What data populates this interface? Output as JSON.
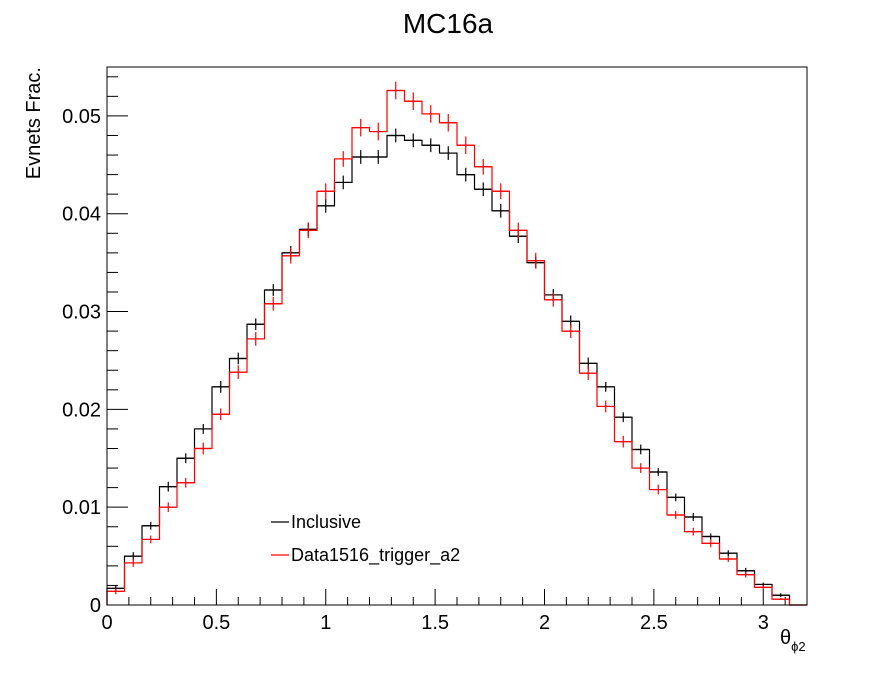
{
  "chart_data": {
    "type": "histogram",
    "title": "MC16a",
    "xlabel": "θ",
    "xlabel_sub": "ϕ2",
    "ylabel": "Evnets Frac.",
    "xlim": [
      0,
      3.2
    ],
    "ylim": [
      0,
      0.055
    ],
    "x_ticks": [
      0,
      0.5,
      1,
      1.5,
      2,
      2.5,
      3
    ],
    "x_tick_labels": [
      "0",
      "0.5",
      "1",
      "1.5",
      "2",
      "2.5",
      "3"
    ],
    "y_ticks": [
      0,
      0.01,
      0.02,
      0.03,
      0.04,
      0.05
    ],
    "y_tick_labels": [
      "0",
      "0.01",
      "0.02",
      "0.03",
      "0.04",
      "0.05"
    ],
    "bin_width": 0.08,
    "x_start": 0,
    "series": [
      {
        "name": "Inclusive",
        "color": "#000000",
        "values": [
          0.0017,
          0.005,
          0.0081,
          0.0121,
          0.015,
          0.018,
          0.0223,
          0.0252,
          0.0287,
          0.0322,
          0.036,
          0.0384,
          0.0408,
          0.0432,
          0.0458,
          0.0458,
          0.048,
          0.0475,
          0.047,
          0.0462,
          0.044,
          0.0425,
          0.0403,
          0.0377,
          0.035,
          0.0317,
          0.029,
          0.0247,
          0.0223,
          0.0192,
          0.0159,
          0.0136,
          0.011,
          0.009,
          0.007,
          0.0053,
          0.0035,
          0.0021,
          0.001,
          0.0
        ],
        "errors": [
          0.0003,
          0.0004,
          0.0004,
          0.0005,
          0.0005,
          0.0005,
          0.0006,
          0.0006,
          0.0006,
          0.0006,
          0.0007,
          0.0007,
          0.0007,
          0.0007,
          0.0007,
          0.0007,
          0.0007,
          0.0007,
          0.0007,
          0.0007,
          0.0007,
          0.0007,
          0.0007,
          0.0007,
          0.0006,
          0.0006,
          0.0006,
          0.0006,
          0.0005,
          0.0005,
          0.0005,
          0.0004,
          0.0004,
          0.0004,
          0.0003,
          0.0003,
          0.0003,
          0.0002,
          0.0002,
          0.0
        ]
      },
      {
        "name": "Data1516_trigger_a2",
        "color": "#ff0000",
        "values": [
          0.0014,
          0.0043,
          0.0067,
          0.01,
          0.0125,
          0.016,
          0.0195,
          0.0238,
          0.0272,
          0.0308,
          0.0357,
          0.0383,
          0.0423,
          0.0456,
          0.0488,
          0.0484,
          0.0526,
          0.0515,
          0.0502,
          0.0493,
          0.047,
          0.0448,
          0.0423,
          0.0383,
          0.0352,
          0.0312,
          0.028,
          0.0237,
          0.0203,
          0.0167,
          0.014,
          0.0118,
          0.0092,
          0.0075,
          0.0063,
          0.0047,
          0.0031,
          0.0018,
          0.0006,
          0.0
        ],
        "errors": [
          0.0003,
          0.0004,
          0.0004,
          0.0005,
          0.0005,
          0.0006,
          0.0006,
          0.0007,
          0.0007,
          0.0007,
          0.0008,
          0.0008,
          0.0008,
          0.0008,
          0.0009,
          0.0009,
          0.0009,
          0.0009,
          0.0009,
          0.0009,
          0.0009,
          0.0008,
          0.0008,
          0.0008,
          0.0008,
          0.0007,
          0.0007,
          0.0007,
          0.0006,
          0.0006,
          0.0005,
          0.0005,
          0.0004,
          0.0004,
          0.0004,
          0.0003,
          0.0003,
          0.0002,
          0.0001,
          0.0
        ]
      }
    ],
    "legend": {
      "entries": [
        "Inclusive",
        "Data1516_trigger_a2"
      ],
      "placement": "bottom-center"
    }
  }
}
